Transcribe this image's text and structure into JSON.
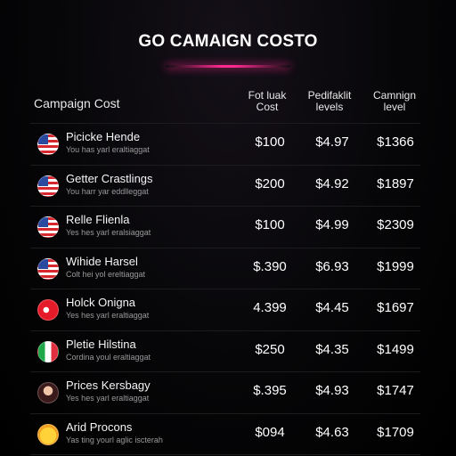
{
  "title": "GO CAMAIGN COSTO",
  "header": {
    "main_label": "Campaign Cost",
    "col1": [
      "Fot luak",
      "Cost"
    ],
    "col2": [
      "Pedifaklit",
      "levels"
    ],
    "col3": [
      "Camnign",
      "level"
    ]
  },
  "rows": [
    {
      "name": "Picicke Hende",
      "sub": "You has yarl eraltiaggat",
      "v1": "$100",
      "v2": "$4.97",
      "v3": "$1366",
      "flag": "us-flag-icon"
    },
    {
      "name": "Getter Crastlings",
      "sub": "You harr yar eddlleggat",
      "v1": "$200",
      "v2": "$4.92",
      "v3": "$1897",
      "flag": "us-flag-icon"
    },
    {
      "name": "Relle Flienla",
      "sub": "Yes hes yarl eralsiaggat",
      "v1": "$100",
      "v2": "$4.99",
      "v3": "$2309",
      "flag": "us-flag-icon"
    },
    {
      "name": "Wihide Harsel",
      "sub": "Colt hei yol ereltiaggat",
      "v1": "$.390",
      "v2": "$6.93",
      "v3": "$1999",
      "flag": "us-flag-icon"
    },
    {
      "name": "Holck Onigna",
      "sub": "Yes hes yarl eraltiaggat",
      "v1": "4.399",
      "v2": "$4.45",
      "v3": "$1697",
      "flag": "turkey-flag-icon"
    },
    {
      "name": "Pletie Hilstina",
      "sub": "Cordina youl eraltiaggat",
      "v1": "$250",
      "v2": "$4.35",
      "v3": "$1499",
      "flag": "italy-flag-icon"
    },
    {
      "name": "Prices Kersbagy",
      "sub": "Yes hes yarl eraltiaggat",
      "v1": "$.395",
      "v2": "$4.93",
      "v3": "$1747",
      "flag": "avatar-face-icon"
    },
    {
      "name": "Arid Procons",
      "sub": "Yas ting yourl aglic iscterah",
      "v1": "$094",
      "v2": "$4.63",
      "v3": "$1709",
      "flag": "smiley-icon"
    }
  ],
  "colors": {
    "accent": "#ff2a90",
    "background": "#000000"
  }
}
